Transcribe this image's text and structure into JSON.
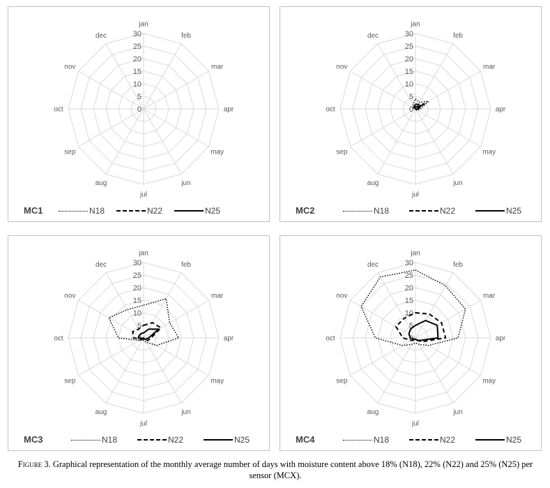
{
  "figure": {
    "caption_prefix": "Figure 3.",
    "caption_text": "Graphical representation of the monthly average number of days with moisture content above 18% (N18), 22% (N22) and 25% (N25) per sensor (MCX)."
  },
  "colors": {
    "grid": "#d9d9d9",
    "text": "#595959",
    "series": "#000000"
  },
  "chart_data": [
    {
      "type": "radar",
      "panel_label": "MC1",
      "categories": [
        "jan",
        "feb",
        "mar",
        "apr",
        "may",
        "jun",
        "jul",
        "aug",
        "sep",
        "oct",
        "nov",
        "dec"
      ],
      "rticks": [
        "0",
        "5",
        "10",
        "15",
        "20",
        "25",
        "30"
      ],
      "rlim": [
        0,
        30
      ],
      "series": [
        {
          "name": "N18",
          "style": "dotted",
          "values": [
            0,
            0,
            0,
            0,
            0,
            0,
            0,
            0,
            0,
            0,
            0,
            0
          ]
        },
        {
          "name": "N22",
          "style": "dashed",
          "values": [
            0,
            0,
            0,
            0,
            0,
            0,
            0,
            0,
            0,
            0,
            0,
            0
          ]
        },
        {
          "name": "N25",
          "style": "solid",
          "values": [
            0,
            0,
            0,
            0,
            0,
            0,
            0,
            0,
            0,
            0,
            0,
            0
          ]
        }
      ]
    },
    {
      "type": "radar",
      "panel_label": "MC2",
      "categories": [
        "jan",
        "feb",
        "mar",
        "apr",
        "may",
        "jun",
        "jul",
        "aug",
        "sep",
        "oct",
        "nov",
        "dec"
      ],
      "rticks": [
        "0",
        "5",
        "10",
        "15",
        "20",
        "25",
        "30"
      ],
      "rlim": [
        0,
        30
      ],
      "series": [
        {
          "name": "N18",
          "style": "dotted",
          "values": [
            4,
            3,
            6,
            2,
            1,
            0.5,
            0.5,
            0,
            0,
            0,
            1,
            2
          ]
        },
        {
          "name": "N22",
          "style": "dashed",
          "values": [
            2,
            2,
            4,
            1,
            0.5,
            0,
            0,
            0,
            0,
            0,
            0.5,
            1
          ]
        },
        {
          "name": "N25",
          "style": "solid",
          "values": [
            1,
            1,
            3,
            0.5,
            0,
            0,
            0,
            0,
            0,
            0,
            0,
            0.5
          ]
        }
      ]
    },
    {
      "type": "radar",
      "panel_label": "MC3",
      "categories": [
        "jan",
        "feb",
        "mar",
        "apr",
        "may",
        "jun",
        "jul",
        "aug",
        "sep",
        "oct",
        "nov",
        "dec"
      ],
      "rticks": [
        "0",
        "5",
        "10",
        "15",
        "20",
        "25",
        "30"
      ],
      "rlim": [
        0,
        30
      ],
      "series": [
        {
          "name": "N18",
          "style": "dotted",
          "values": [
            13,
            18,
            12,
            14,
            6,
            2,
            1,
            1,
            2,
            10,
            16,
            13
          ]
        },
        {
          "name": "N22",
          "style": "dashed",
          "values": [
            5,
            7,
            8,
            3,
            2,
            1,
            0.5,
            0.5,
            1,
            4,
            5,
            4
          ]
        },
        {
          "name": "N25",
          "style": "solid",
          "values": [
            2,
            4,
            7,
            2,
            1,
            0.5,
            0,
            0,
            0.5,
            2,
            2,
            2
          ]
        }
      ]
    },
    {
      "type": "radar",
      "panel_label": "MC4",
      "categories": [
        "jan",
        "feb",
        "mar",
        "apr",
        "may",
        "jun",
        "jul",
        "aug",
        "sep",
        "oct",
        "nov",
        "dec"
      ],
      "rticks": [
        "0",
        "5",
        "10",
        "15",
        "20",
        "25",
        "30"
      ],
      "rlim": [
        0,
        30
      ],
      "series": [
        {
          "name": "N18",
          "style": "dotted",
          "values": [
            27,
            24,
            23,
            17,
            6,
            3,
            2,
            3,
            6,
            16,
            25,
            28
          ]
        },
        {
          "name": "N22",
          "style": "dashed",
          "values": [
            10,
            11,
            12,
            12,
            3,
            1,
            1,
            1,
            2,
            5,
            9,
            9
          ]
        },
        {
          "name": "N25",
          "style": "solid",
          "values": [
            5,
            8,
            10,
            9,
            2,
            1,
            0.5,
            0.5,
            1,
            2,
            3,
            4
          ]
        }
      ]
    }
  ]
}
